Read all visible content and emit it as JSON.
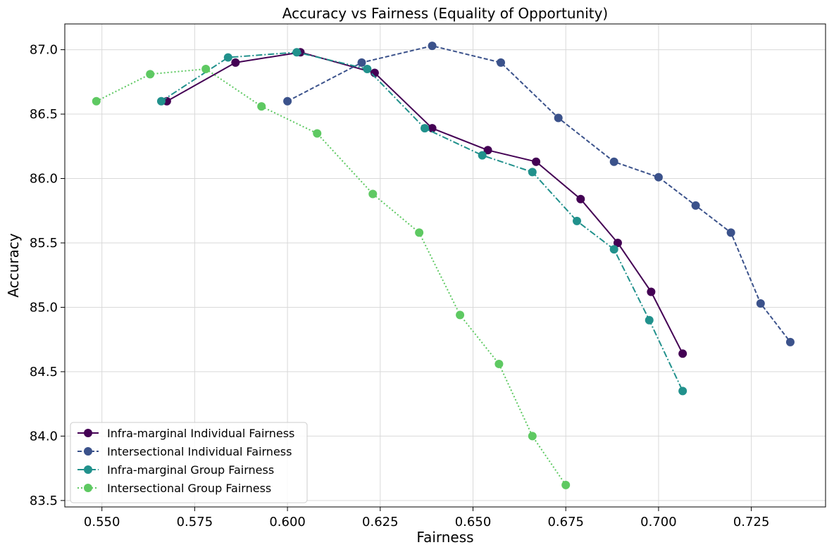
{
  "chart_data": {
    "type": "line",
    "title": "Accuracy vs Fairness (Equality of Opportunity)",
    "xlabel": "Fairness",
    "ylabel": "Accuracy",
    "xlim": [
      0.54,
      0.745
    ],
    "ylim": [
      83.45,
      87.2
    ],
    "xticks": [
      0.55,
      0.575,
      0.6,
      0.625,
      0.65,
      0.675,
      0.7,
      0.725
    ],
    "xtick_labels": [
      "0.550",
      "0.575",
      "0.600",
      "0.625",
      "0.650",
      "0.675",
      "0.700",
      "0.725"
    ],
    "yticks": [
      83.5,
      84.0,
      84.5,
      85.0,
      85.5,
      86.0,
      86.5,
      87.0
    ],
    "ytick_labels": [
      "83.5",
      "84.0",
      "84.5",
      "85.0",
      "85.5",
      "86.0",
      "86.5",
      "87.0"
    ],
    "grid": true,
    "legend_position": "lower-left",
    "series": [
      {
        "name": "Infra-marginal Individual Fairness",
        "color": "#440154",
        "line_style": "solid",
        "x": [
          0.5675,
          0.586,
          0.6035,
          0.6235,
          0.639,
          0.654,
          0.667,
          0.679,
          0.689,
          0.698,
          0.7065
        ],
        "y": [
          86.6,
          86.9,
          86.98,
          86.82,
          86.39,
          86.22,
          86.13,
          85.84,
          85.5,
          85.12,
          84.64
        ]
      },
      {
        "name": "Intersectional Individual Fairness",
        "color": "#3b528b",
        "line_style": "dashed",
        "x": [
          0.6,
          0.62,
          0.639,
          0.6575,
          0.673,
          0.688,
          0.7,
          0.71,
          0.7195,
          0.7275,
          0.7355
        ],
        "y": [
          86.6,
          86.9,
          87.03,
          86.9,
          86.47,
          86.13,
          86.01,
          85.79,
          85.58,
          85.03,
          84.73
        ]
      },
      {
        "name": "Infra-marginal Group Fairness",
        "color": "#21918c",
        "line_style": "dashdot",
        "x": [
          0.566,
          0.584,
          0.6025,
          0.6215,
          0.637,
          0.6525,
          0.666,
          0.678,
          0.688,
          0.6975,
          0.7065
        ],
        "y": [
          86.6,
          86.94,
          86.98,
          86.85,
          86.39,
          86.18,
          86.05,
          85.67,
          85.45,
          84.9,
          84.35
        ]
      },
      {
        "name": "Intersectional Group Fairness",
        "color": "#5ec962",
        "line_style": "dotted",
        "x": [
          0.5485,
          0.563,
          0.578,
          0.593,
          0.608,
          0.623,
          0.6355,
          0.6465,
          0.657,
          0.666,
          0.675
        ],
        "y": [
          86.6,
          86.81,
          86.85,
          86.56,
          86.35,
          85.88,
          85.58,
          84.94,
          84.56,
          84.0,
          83.62
        ]
      }
    ]
  }
}
